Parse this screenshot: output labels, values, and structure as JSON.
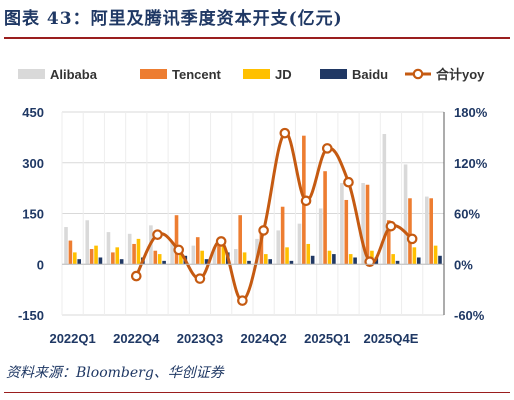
{
  "title": "图表 43：阿里及腾讯季度资本开支(亿元)",
  "source": "资料来源：Bloomberg、华创证券",
  "chart_data": {
    "type": "bar",
    "title": "图表 43：阿里及腾讯季度资本开支(亿元)",
    "xlabel": "",
    "ylabel": "",
    "legend_position": "top",
    "categories": [
      "2022Q1",
      "2022Q2",
      "2022Q3",
      "2022Q4",
      "2023Q1",
      "2023Q2",
      "2023Q3",
      "2023Q4",
      "2024Q1",
      "2024Q2",
      "2024Q3",
      "2024Q4",
      "2025Q1",
      "2025Q2",
      "2025Q3",
      "2025Q4E",
      "2026Q1E",
      "2026Q2E"
    ],
    "x_tick_labels": [
      "2022Q1",
      "2022Q4",
      "2023Q3",
      "2024Q2",
      "2025Q1",
      "2025Q4E"
    ],
    "y_left": {
      "min": -150,
      "max": 450,
      "ticks": [
        -150,
        0,
        150,
        300,
        450
      ]
    },
    "y_right": {
      "min": -0.6,
      "max": 1.8,
      "ticks": [
        -0.6,
        0,
        0.6,
        1.2,
        1.8
      ],
      "tick_labels": [
        "-60%",
        "0%",
        "60%",
        "120%",
        "180%"
      ]
    },
    "grid": true,
    "series": [
      {
        "name": "Alibaba",
        "color": "#d9d9d9",
        "axis": "left",
        "values": [
          110,
          130,
          95,
          90,
          115,
          65,
          55,
          50,
          45,
          75,
          100,
          120,
          165,
          240,
          240,
          385,
          295,
          200
        ]
      },
      {
        "name": "Tencent",
        "color": "#ed7d31",
        "axis": "left",
        "values": [
          70,
          45,
          35,
          60,
          40,
          145,
          80,
          75,
          145,
          90,
          170,
          380,
          275,
          190,
          235,
          130,
          195,
          195
        ]
      },
      {
        "name": "JD",
        "color": "#ffc000",
        "axis": "left",
        "values": [
          35,
          55,
          50,
          75,
          30,
          35,
          40,
          70,
          35,
          30,
          50,
          60,
          40,
          30,
          40,
          30,
          50,
          55
        ]
      },
      {
        "name": "Baidu",
        "color": "#203864",
        "axis": "left",
        "values": [
          15,
          20,
          15,
          20,
          10,
          25,
          15,
          35,
          10,
          15,
          10,
          25,
          30,
          20,
          20,
          10,
          20,
          25
        ]
      },
      {
        "name": "合计yoy",
        "type": "line",
        "color": "#c55a11",
        "axis": "right",
        "values": [
          null,
          null,
          null,
          -0.14,
          0.35,
          0.17,
          -0.17,
          0.27,
          -0.43,
          0.4,
          1.55,
          0.75,
          1.37,
          0.97,
          0.03,
          0.45,
          0.3,
          null
        ]
      }
    ]
  }
}
